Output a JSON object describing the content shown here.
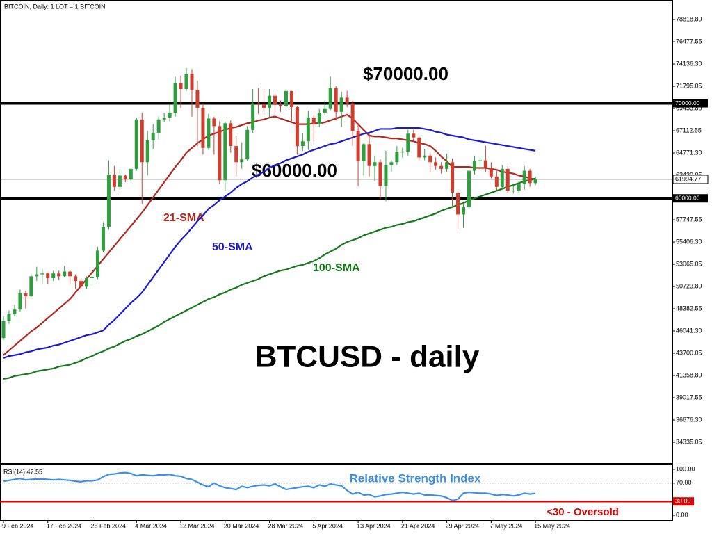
{
  "header": "BITCOIN, Daily:  1 LOT = 1 BITCOIN",
  "chart_data": {
    "type": "candlestick",
    "title": "BTCUSD - daily",
    "x": [
      "9 Feb 2024",
      null,
      null,
      null,
      null,
      null,
      null,
      null,
      "17 Feb 2024",
      null,
      null,
      null,
      null,
      null,
      null,
      null,
      "25 Feb 2024",
      null,
      null,
      null,
      null,
      null,
      null,
      null,
      "4 Mar 2024",
      null,
      null,
      null,
      null,
      null,
      null,
      null,
      "12 Mar 2024",
      null,
      null,
      null,
      null,
      null,
      null,
      null,
      "20 Mar 2024",
      null,
      null,
      null,
      null,
      null,
      null,
      null,
      "28 Mar 2024",
      null,
      null,
      null,
      null,
      null,
      null,
      null,
      "5 Apr 2024",
      null,
      null,
      null,
      null,
      null,
      null,
      null,
      "13 Apr 2024",
      null,
      null,
      null,
      null,
      null,
      null,
      null,
      "21 Apr 2024",
      null,
      null,
      null,
      null,
      null,
      null,
      null,
      "29 Apr 2024",
      null,
      null,
      null,
      null,
      null,
      null,
      null,
      "7 May 2024",
      null,
      null,
      null,
      null,
      null,
      null,
      null,
      "15 May 2024"
    ],
    "open": [
      45300,
      47100,
      47800,
      48300,
      50000,
      49700,
      51800,
      52000,
      52100,
      51600,
      52100,
      51800,
      52300,
      51800,
      51300,
      50700,
      51600,
      51700,
      54500,
      57000,
      62500,
      61200,
      62400,
      62000,
      63100,
      68300,
      63800,
      66100,
      66900,
      68300,
      68500,
      69000,
      72100,
      71500,
      73100,
      71400,
      69500,
      65300,
      68400,
      67600,
      61900,
      67900,
      65500,
      63800,
      64100,
      67200,
      70000,
      69900,
      69500,
      70800,
      69900,
      69700,
      71300,
      69600,
      65500,
      66000,
      68500,
      67800,
      69000,
      69400,
      71600,
      69100,
      70600,
      70000,
      67100,
      63900,
      65700,
      63400,
      63800,
      61300,
      63500,
      63800,
      64900,
      64900,
      66800,
      66400,
      64300,
      64500,
      63800,
      63400,
      63100,
      63800,
      60600,
      58300,
      59100,
      62900,
      63900,
      64000,
      63200,
      62300,
      61200,
      63100,
      60800,
      60800,
      61500,
      62900,
      61600
    ],
    "high": [
      47600,
      48200,
      48800,
      50400,
      50300,
      52000,
      52800,
      52600,
      52200,
      52400,
      52400,
      52900,
      52400,
      52000,
      51600,
      51800,
      51900,
      54900,
      57500,
      64000,
      63400,
      63100,
      62500,
      63200,
      68500,
      69000,
      67100,
      67800,
      68600,
      69000,
      69900,
      72800,
      72900,
      73700,
      73600,
      72400,
      70000,
      68900,
      68600,
      68100,
      68100,
      68200,
      66600,
      65900,
      67600,
      71500,
      71600,
      71300,
      71500,
      71000,
      70300,
      71400,
      71300,
      69700,
      66800,
      69200,
      68700,
      69400,
      70300,
      72800,
      71800,
      71200,
      71300,
      70300,
      67900,
      65800,
      66900,
      64500,
      64100,
      65000,
      64000,
      65500,
      65300,
      67200,
      67200,
      66500,
      65200,
      64800,
      64300,
      63800,
      64700,
      64200,
      60800,
      59500,
      63200,
      64500,
      64400,
      65500,
      63800,
      62900,
      63500,
      63400,
      61500,
      61800,
      63400,
      63100,
      62300
    ],
    "low": [
      45100,
      46800,
      47600,
      48100,
      48400,
      49600,
      51300,
      51000,
      51000,
      51300,
      51400,
      51700,
      51000,
      50500,
      50600,
      50500,
      50800,
      51500,
      54300,
      56700,
      60800,
      60900,
      61700,
      61800,
      62900,
      59400,
      62400,
      65200,
      66200,
      68000,
      68100,
      68600,
      69500,
      71300,
      68600,
      65500,
      64600,
      65100,
      64600,
      61500,
      60800,
      64800,
      62300,
      63100,
      63900,
      66900,
      68900,
      68800,
      68400,
      68800,
      69100,
      69600,
      68100,
      64600,
      65000,
      65100,
      66000,
      67500,
      68700,
      69300,
      68200,
      67500,
      69600,
      65500,
      61300,
      62400,
      62300,
      61800,
      59900,
      59700,
      62800,
      63500,
      64300,
      64500,
      65900,
      64000,
      64000,
      62800,
      63000,
      62600,
      62800,
      59200,
      56600,
      56900,
      58800,
      62500,
      63000,
      62800,
      62100,
      60800,
      60900,
      60600,
      60500,
      60600,
      60900,
      61200,
      61400
    ],
    "close": [
      47100,
      47800,
      48300,
      50000,
      49700,
      51800,
      52000,
      52100,
      51600,
      52100,
      51800,
      52300,
      51800,
      51300,
      50700,
      51600,
      51700,
      54500,
      57000,
      62500,
      61200,
      62400,
      62000,
      63100,
      68300,
      63800,
      66100,
      66900,
      68300,
      68500,
      69000,
      72100,
      71500,
      73100,
      71400,
      69500,
      65300,
      68400,
      67600,
      61900,
      67900,
      65500,
      63800,
      64100,
      67200,
      70000,
      69900,
      69500,
      70800,
      69900,
      69700,
      71300,
      69600,
      65500,
      66000,
      68500,
      67800,
      69000,
      69400,
      71600,
      69100,
      70600,
      70000,
      67100,
      63900,
      65700,
      63400,
      63800,
      61300,
      63500,
      63800,
      64900,
      64900,
      66800,
      66400,
      64300,
      64500,
      63800,
      63400,
      63100,
      63800,
      60600,
      58300,
      59100,
      62900,
      63900,
      64000,
      63200,
      62300,
      61200,
      63100,
      60800,
      60800,
      61500,
      62900,
      61600,
      61994.77
    ],
    "up_color": "#2f9e3f",
    "down_color": "#cf3d2e",
    "series": [
      {
        "name": "21-SMA",
        "color": "#b3261e",
        "values": [
          43500,
          44000,
          44500,
          45000,
          45500,
          46000,
          46400,
          46900,
          47400,
          47900,
          48400,
          48900,
          49400,
          50100,
          50800,
          51500,
          52200,
          52900,
          53600,
          54300,
          55000,
          55700,
          56400,
          57100,
          57800,
          58500,
          59300,
          60100,
          60900,
          61700,
          62500,
          63300,
          64000,
          64800,
          65300,
          65800,
          66200,
          66600,
          66800,
          67000,
          67200,
          67400,
          67500,
          67700,
          67900,
          68000,
          68200,
          68300,
          68500,
          68600,
          68400,
          68200,
          68000,
          67800,
          67800,
          67800,
          67900,
          67900,
          68000,
          68200,
          68400,
          68600,
          68800,
          68400,
          67800,
          67200,
          66600,
          66500,
          66500,
          66400,
          66300,
          66300,
          66200,
          66100,
          66000,
          65800,
          65700,
          65500,
          65000,
          64400,
          63900,
          63300,
          63300,
          63300,
          63300,
          63200,
          63200,
          63200,
          63100,
          63000,
          62800,
          62700,
          62600,
          62400,
          62300,
          62100,
          62000
        ]
      },
      {
        "name": "50-SMA",
        "color": "#1a1ad6",
        "values": [
          43200,
          43400,
          43500,
          43600,
          43800,
          43900,
          44100,
          44200,
          44300,
          44500,
          44600,
          44800,
          45000,
          45200,
          45400,
          45600,
          45700,
          45900,
          46100,
          46700,
          47200,
          47800,
          48400,
          49000,
          49500,
          50100,
          50900,
          51700,
          52500,
          53300,
          54100,
          54900,
          55600,
          56200,
          56900,
          57600,
          58200,
          58900,
          59300,
          59800,
          60200,
          60600,
          61100,
          61500,
          61800,
          62200,
          62500,
          62800,
          63200,
          63500,
          63700,
          64000,
          64200,
          64400,
          64600,
          64900,
          65100,
          65300,
          65500,
          65700,
          65800,
          66000,
          66200,
          66400,
          66600,
          66800,
          66900,
          67100,
          67300,
          67300,
          67300,
          67400,
          67400,
          67400,
          67400,
          67400,
          67300,
          67200,
          67000,
          66900,
          66700,
          66600,
          66500,
          66400,
          66200,
          66100,
          66000,
          65900,
          65800,
          65700,
          65600,
          65500,
          65400,
          65300,
          65200,
          65100,
          65000
        ]
      },
      {
        "name": "100-SMA",
        "color": "#137a17",
        "values": [
          41000,
          41100,
          41300,
          41400,
          41500,
          41600,
          41800,
          41900,
          42000,
          42100,
          42300,
          42400,
          42500,
          42700,
          42900,
          43200,
          43400,
          43700,
          43900,
          44200,
          44400,
          44700,
          45000,
          45200,
          45500,
          45700,
          46000,
          46300,
          46600,
          47000,
          47300,
          47600,
          47900,
          48200,
          48500,
          48800,
          49100,
          49400,
          49600,
          49900,
          50100,
          50400,
          50600,
          50900,
          51100,
          51300,
          51500,
          51800,
          52000,
          52200,
          52400,
          52500,
          52700,
          52900,
          53000,
          53200,
          53400,
          53700,
          54100,
          54400,
          54700,
          55100,
          55400,
          55600,
          55800,
          56100,
          56300,
          56500,
          56700,
          56900,
          57000,
          57200,
          57300,
          57500,
          57600,
          57800,
          58000,
          58200,
          58400,
          58700,
          58900,
          59100,
          59300,
          59500,
          59800,
          60000,
          60200,
          60400,
          60600,
          60800,
          61000,
          61200,
          61400,
          61600,
          61800,
          61900,
          62100
        ]
      }
    ],
    "ylim": [
      32216,
      80867
    ],
    "yticks": [
      {
        "value": 78818.8,
        "label": "78818.80"
      },
      {
        "value": 76477.55,
        "label": "76477.55"
      },
      {
        "value": 74136.3,
        "label": "74136.30"
      },
      {
        "value": 71795.05,
        "label": "71795.05"
      },
      {
        "value": 69453.8,
        "label": "69453.80"
      },
      {
        "value": 67112.55,
        "label": "67112.55"
      },
      {
        "value": 64771.3,
        "label": "64771.30"
      },
      {
        "value": 62430.05,
        "label": "62430.05"
      },
      {
        "value": 57747.55,
        "label": "57747.55"
      },
      {
        "value": 55406.3,
        "label": "55406.30"
      },
      {
        "value": 53065.05,
        "label": "53065.05"
      },
      {
        "value": 50723.8,
        "label": "50723.80"
      },
      {
        "value": 48382.55,
        "label": "48382.55"
      },
      {
        "value": 46041.3,
        "label": "46041.30"
      },
      {
        "value": 43700.05,
        "label": "43700.05"
      },
      {
        "value": 41358.8,
        "label": "41358.80"
      },
      {
        "value": 39017.55,
        "label": "39017.55"
      },
      {
        "value": 36676.3,
        "label": "36676.30"
      },
      {
        "value": 34335.05,
        "label": "34335.05"
      }
    ],
    "levels": [
      {
        "value": 70000,
        "label": "70000.00",
        "annotation": "$70000.00"
      },
      {
        "value": 60000,
        "label": "60000.00",
        "annotation": "$60000.00"
      }
    ],
    "last_price": 61994.77,
    "rsi": {
      "label": "RSI(14) 47.55",
      "title": "Relative Strength Index",
      "color": "#3b8fe8",
      "values": [
        74,
        76,
        78,
        80,
        77,
        78,
        79,
        79,
        78,
        77,
        78,
        77,
        76,
        74,
        73,
        75,
        75,
        77,
        84,
        89,
        90,
        92,
        93,
        91,
        86,
        88,
        87,
        86,
        88,
        88,
        89,
        86,
        85,
        80,
        78,
        72,
        66,
        62,
        70,
        64,
        60,
        58,
        56,
        63,
        60,
        63,
        65,
        66,
        64,
        68,
        62,
        56,
        58,
        60,
        62,
        63,
        60,
        66,
        63,
        68,
        66,
        64,
        54,
        46,
        50,
        44,
        45,
        40,
        42,
        45,
        46,
        48,
        50,
        48,
        46,
        48,
        44,
        44,
        43,
        42,
        38,
        32,
        35,
        48,
        50,
        49,
        48,
        48,
        46,
        43,
        45,
        44,
        42,
        44,
        48,
        46,
        47.55
      ],
      "ylim": [
        -10.6,
        110.6
      ],
      "yticks": [
        {
          "value": 100,
          "label": "100.00"
        },
        {
          "value": 70,
          "label": "70.00"
        },
        {
          "value": 0,
          "label": "0.00"
        }
      ],
      "oversold": {
        "value": 30,
        "label": "30.00",
        "annotation": "<30 - Oversold",
        "color": "#e00000"
      }
    }
  }
}
